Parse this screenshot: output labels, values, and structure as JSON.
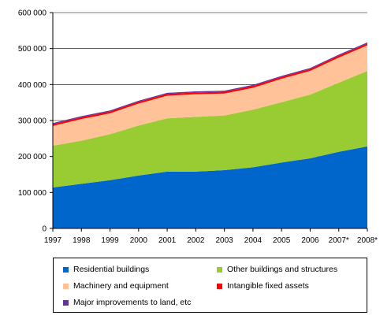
{
  "chart_data": {
    "type": "area",
    "stacked": true,
    "categories": [
      "1997",
      "1998",
      "1999",
      "2000",
      "2001",
      "2002",
      "2003",
      "2004",
      "2005",
      "2006",
      "2007*",
      "2008*"
    ],
    "ylim": [
      0,
      600000
    ],
    "yticks": [
      0,
      100000,
      200000,
      300000,
      400000,
      500000,
      600000
    ],
    "ytick_labels": [
      "0",
      "100 000",
      "200 000",
      "300 000",
      "400 000",
      "500 000",
      "600 000"
    ],
    "grid": true,
    "legend_position": "bottom",
    "series": [
      {
        "name": "Residential buildings",
        "color": "#0066cc",
        "values": [
          114000,
          124000,
          134000,
          147000,
          158000,
          158000,
          162000,
          170000,
          183000,
          195000,
          213000,
          228000
        ]
      },
      {
        "name": "Other buildings and structures",
        "color": "#99cc33",
        "values": [
          116000,
          120000,
          128000,
          139000,
          148000,
          152000,
          152000,
          160000,
          168000,
          177000,
          192000,
          210000
        ]
      },
      {
        "name": "Machinery and equipment",
        "color": "#ffc299",
        "values": [
          55000,
          60000,
          58000,
          61000,
          63000,
          63000,
          61000,
          61000,
          65000,
          66000,
          70000,
          71000
        ]
      },
      {
        "name": "Intangible fixed assets",
        "color": "#ff0000",
        "values": [
          5000,
          5000,
          5000,
          5000,
          5000,
          5000,
          5000,
          5000,
          5000,
          5000,
          5000,
          5000
        ]
      },
      {
        "name": "Major improvements to land, etc",
        "color": "#663399",
        "values": [
          3000,
          3000,
          3000,
          3000,
          3000,
          3000,
          3000,
          3000,
          3000,
          3000,
          3000,
          3000
        ]
      }
    ]
  }
}
